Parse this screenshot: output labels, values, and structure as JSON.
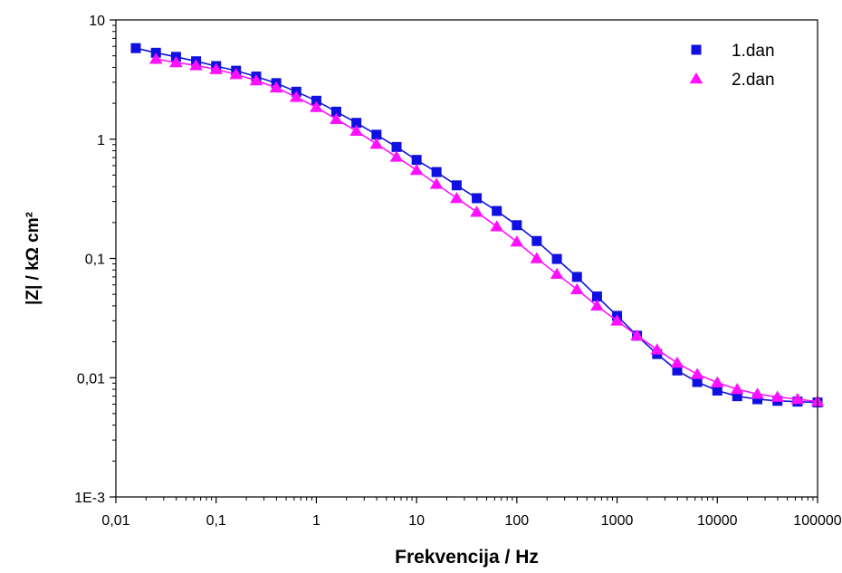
{
  "chart_data": {
    "type": "line",
    "xscale": "log",
    "yscale": "log",
    "xlim": [
      0.01,
      100000
    ],
    "ylim": [
      0.001,
      10
    ],
    "xlabel": "Frekvencija / Hz",
    "ylabel": "|Z| / kΩ cm²",
    "xticks": [
      {
        "value": 0.01,
        "label": "0,01"
      },
      {
        "value": 0.1,
        "label": "0,1"
      },
      {
        "value": 1,
        "label": "1"
      },
      {
        "value": 10,
        "label": "10"
      },
      {
        "value": 100,
        "label": "100"
      },
      {
        "value": 1000,
        "label": "1000"
      },
      {
        "value": 10000,
        "label": "10000"
      },
      {
        "value": 100000,
        "label": "100000"
      }
    ],
    "yticks": [
      {
        "value": 0.001,
        "label": "1E-3"
      },
      {
        "value": 0.01,
        "label": "0,01"
      },
      {
        "value": 0.1,
        "label": "0,1"
      },
      {
        "value": 1,
        "label": "1"
      },
      {
        "value": 10,
        "label": "10"
      }
    ],
    "grid": false,
    "legend": "top-right",
    "series": [
      {
        "name": "1.dan",
        "color": "#1010e0",
        "marker": "square",
        "x": [
          0.0158,
          0.0251,
          0.0398,
          0.0631,
          0.1,
          0.158,
          0.251,
          0.398,
          0.631,
          1,
          1.58,
          2.51,
          3.98,
          6.31,
          10,
          15.8,
          25.1,
          39.8,
          63.1,
          100,
          158,
          251,
          398,
          631,
          1000,
          1580,
          2510,
          3980,
          6310,
          10000,
          15800,
          25100,
          39800,
          63100,
          100000
        ],
        "y": [
          5.8,
          5.3,
          4.9,
          4.5,
          4.1,
          3.75,
          3.35,
          2.95,
          2.5,
          2.1,
          1.7,
          1.37,
          1.09,
          0.86,
          0.67,
          0.53,
          0.41,
          0.32,
          0.25,
          0.19,
          0.14,
          0.099,
          0.07,
          0.048,
          0.033,
          0.0225,
          0.0158,
          0.0115,
          0.0092,
          0.0078,
          0.007,
          0.0066,
          0.0064,
          0.0063,
          0.0062
        ]
      },
      {
        "name": "2.dan",
        "color": "#ff10ff",
        "marker": "triangle",
        "x": [
          0.0251,
          0.0398,
          0.0631,
          0.1,
          0.158,
          0.251,
          0.398,
          0.631,
          1,
          1.58,
          2.51,
          3.98,
          6.31,
          10,
          15.8,
          25.1,
          39.8,
          63.1,
          100,
          158,
          251,
          398,
          631,
          1000,
          1580,
          2510,
          3980,
          6310,
          10000,
          15800,
          25100,
          39800,
          63100,
          100000
        ],
        "y": [
          4.7,
          4.4,
          4.15,
          3.85,
          3.5,
          3.1,
          2.7,
          2.25,
          1.85,
          1.47,
          1.17,
          0.91,
          0.71,
          0.55,
          0.42,
          0.32,
          0.245,
          0.185,
          0.138,
          0.1,
          0.074,
          0.055,
          0.04,
          0.03,
          0.0225,
          0.0172,
          0.0133,
          0.0107,
          0.0091,
          0.008,
          0.0073,
          0.0069,
          0.0066,
          0.0063
        ]
      }
    ]
  }
}
